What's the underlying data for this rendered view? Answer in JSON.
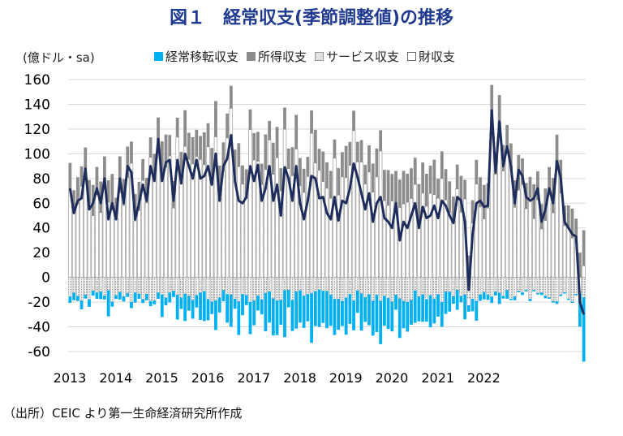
{
  "title": "図１　経常収支(季節調整値)の推移",
  "unit_label": "(億ドル・sa)",
  "legend": {
    "transfer": "経常移転収支",
    "income": "所得収支",
    "service": "サービス収支",
    "goods": "財収支"
  },
  "source": "（出所）CEIC より第一生命経済研究所作成",
  "colors": {
    "title": "#1f3a8f",
    "transfer": "#00b0f0",
    "income": "#8c8c8c",
    "line": "#1f2d5c",
    "zero_tick": "#ff0000"
  },
  "chart_data": {
    "type": "bar",
    "stacked": true,
    "frequency": "monthly",
    "start": "2013-01",
    "x_tick_labels": [
      "2013",
      "2014",
      "2015",
      "2016",
      "2017",
      "2018",
      "2019",
      "2020",
      "2021",
      "2022"
    ],
    "y_ticks": [
      160,
      140,
      120,
      100,
      80,
      60,
      40,
      20,
      0,
      -20,
      -40,
      -60
    ],
    "ylim": [
      -60,
      160
    ],
    "grid": true,
    "legend_position": "top",
    "current_account": [
      72,
      52,
      62,
      64,
      88,
      55,
      60,
      72,
      60,
      80,
      47,
      60,
      47,
      80,
      60,
      90,
      85,
      47,
      60,
      75,
      62,
      90,
      78,
      112,
      78,
      93,
      95,
      62,
      95,
      76,
      100,
      90,
      80,
      95,
      80,
      82,
      90,
      75,
      100,
      62,
      90,
      96,
      115,
      78,
      62,
      60,
      65,
      90,
      78,
      91,
      62,
      72,
      90,
      62,
      75,
      50,
      89,
      80,
      62,
      90,
      60,
      47,
      62,
      82,
      80,
      64,
      65,
      52,
      47,
      65,
      46,
      62,
      60,
      72,
      92,
      81,
      68,
      55,
      68,
      45,
      60,
      65,
      48,
      45,
      40,
      60,
      30,
      45,
      40,
      50,
      60,
      40,
      57,
      48,
      50,
      58,
      48,
      62,
      58,
      50,
      44,
      65,
      62,
      45,
      -10,
      35,
      60,
      62,
      57,
      58,
      135,
      85,
      126,
      90,
      106,
      90,
      60,
      87,
      82,
      65,
      62,
      64,
      72,
      45,
      55,
      72,
      60,
      94,
      80,
      45,
      40,
      35,
      33,
      -20,
      -30
    ],
    "transfer": [
      -5,
      -6,
      -4,
      -7,
      -3,
      -6,
      -4,
      -5,
      -6,
      -3,
      -21,
      -4,
      -3,
      -6,
      -4,
      -3,
      -5,
      -8,
      -4,
      -3,
      -5,
      -4,
      -3,
      -5,
      -18,
      -6,
      -8,
      -5,
      -20,
      -9,
      -22,
      -12,
      -15,
      -10,
      -22,
      -24,
      -17,
      -10,
      -24,
      -12,
      -9,
      -23,
      -26,
      -8,
      -27,
      -17,
      -8,
      -26,
      -20,
      -12,
      -12,
      -31,
      -25,
      -30,
      -28,
      -20,
      -38,
      -14,
      -25,
      -30,
      -26,
      -26,
      -22,
      -40,
      -28,
      -30,
      -26,
      -30,
      -25,
      -29,
      -25,
      -20,
      -30,
      -24,
      -24,
      -18,
      -30,
      -20,
      -25,
      -28,
      -30,
      -35,
      -24,
      -25,
      -24,
      -12,
      -32,
      -22,
      -24,
      -20,
      -26,
      -20,
      -22,
      -18,
      -26,
      -20,
      -18,
      -20,
      -18,
      -16,
      -6,
      -16,
      -5,
      -20,
      -5,
      -10,
      -16,
      -5,
      -6,
      -4,
      -5,
      -3,
      -9,
      -2,
      -7,
      -1,
      -3,
      -1,
      -2,
      -1,
      -2,
      -1,
      -1,
      -2,
      -2,
      -1,
      -1,
      -2,
      -1,
      -1,
      -1,
      -1,
      -1,
      -27,
      -52
    ]
  }
}
